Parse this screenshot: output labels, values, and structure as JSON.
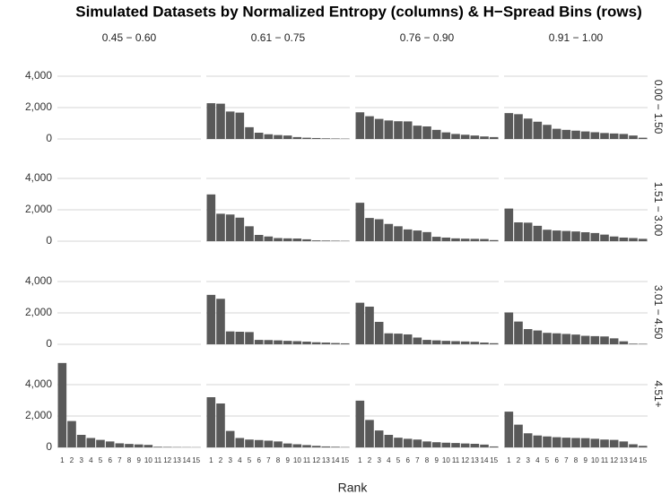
{
  "chart_data": {
    "type": "bar",
    "title": "Simulated Datasets by Normalized Entropy (columns) & H−Spread Bins (rows)",
    "x_label": "Rank",
    "columns": [
      "0.45 − 0.60",
      "0.61 − 0.75",
      "0.76 − 0.90",
      "0.91 − 1.00"
    ],
    "rows": [
      "0.00 − 1.50",
      "1.51 − 3.00",
      "3.01 − 4.50",
      "4.51+"
    ],
    "categories": [
      "1",
      "2",
      "3",
      "4",
      "5",
      "6",
      "7",
      "8",
      "9",
      "10",
      "11",
      "12",
      "13",
      "14",
      "15"
    ],
    "color": "#595959",
    "grid": true,
    "yticks": [
      0,
      {
        "value": 2000,
        "label": "2,000"
      },
      {
        "value": 4000,
        "label": "4,000"
      }
    ],
    "ylims": [
      [
        0,
        4500
      ],
      [
        0,
        4500
      ],
      [
        0,
        4500
      ],
      [
        0,
        7200
      ]
    ],
    "panels": [
      [
        [],
        [
          2280,
          2250,
          1750,
          1680,
          750,
          400,
          300,
          250,
          220,
          120,
          80,
          60,
          40,
          30,
          20
        ],
        [
          1700,
          1450,
          1280,
          1180,
          1130,
          1120,
          850,
          800,
          580,
          420,
          320,
          270,
          220,
          160,
          120
        ],
        [
          1650,
          1580,
          1300,
          1100,
          900,
          650,
          580,
          530,
          480,
          430,
          380,
          350,
          320,
          220,
          80
        ]
      ],
      [
        [],
        [
          2980,
          1750,
          1700,
          1500,
          950,
          400,
          300,
          200,
          180,
          170,
          120,
          50,
          40,
          30,
          20
        ],
        [
          2450,
          1480,
          1400,
          1100,
          950,
          750,
          680,
          580,
          280,
          230,
          180,
          160,
          150,
          140,
          70
        ],
        [
          2080,
          1200,
          1180,
          980,
          730,
          680,
          650,
          620,
          570,
          520,
          420,
          300,
          230,
          200,
          150
        ]
      ],
      [
        [],
        [
          3150,
          2900,
          820,
          800,
          780,
          280,
          270,
          250,
          220,
          200,
          170,
          130,
          110,
          80,
          60
        ],
        [
          2650,
          2400,
          1430,
          700,
          680,
          630,
          430,
          280,
          250,
          220,
          200,
          180,
          160,
          110,
          70
        ],
        [
          2030,
          1450,
          970,
          880,
          730,
          700,
          660,
          620,
          540,
          520,
          500,
          380,
          190,
          40,
          30
        ]
      ],
      [
        [
          5380,
          1680,
          800,
          600,
          480,
          380,
          260,
          220,
          190,
          160,
          40,
          30,
          20,
          15,
          10
        ],
        [
          3200,
          2800,
          1050,
          600,
          500,
          470,
          430,
          380,
          250,
          200,
          150,
          100,
          60,
          40,
          20
        ],
        [
          2980,
          1750,
          1080,
          800,
          620,
          550,
          500,
          380,
          330,
          300,
          280,
          250,
          230,
          180,
          60
        ],
        [
          2280,
          1450,
          900,
          760,
          700,
          650,
          620,
          600,
          590,
          550,
          500,
          480,
          380,
          200,
          100
        ]
      ]
    ]
  }
}
